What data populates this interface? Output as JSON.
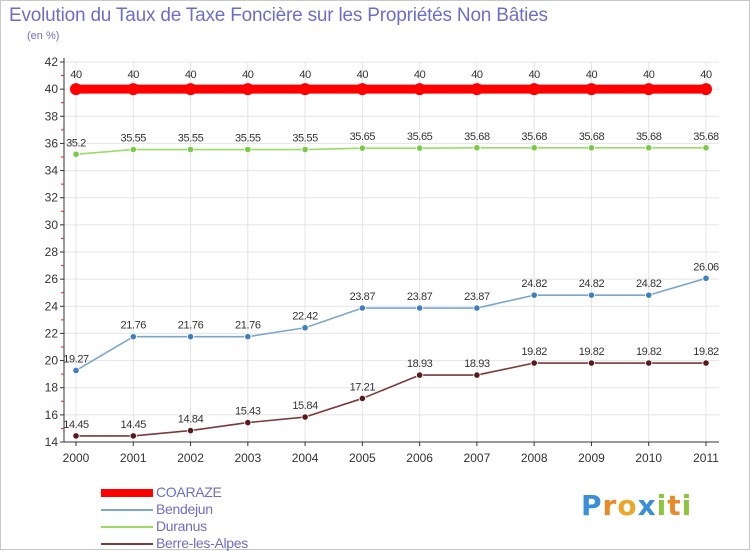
{
  "header": {
    "title": "Evolution du Taux de Taxe Foncière sur les Propriétés Non Bâties",
    "unit": "(en %)"
  },
  "logo": {
    "text": "Proxiti",
    "letters": [
      {
        "ch": "P",
        "color": "#3a8fd8"
      },
      {
        "ch": "r",
        "color": "#e88a2a"
      },
      {
        "ch": "o",
        "color": "#e8a82a"
      },
      {
        "ch": "x",
        "color": "#3a8fd8"
      },
      {
        "ch": "i",
        "color": "#8cc63f"
      },
      {
        "ch": "t",
        "color": "#e88a2a"
      },
      {
        "ch": "i",
        "color": "#8cc63f"
      }
    ]
  },
  "chart_data": {
    "type": "line",
    "title": "Evolution du Taux de Taxe Foncière sur les Propriétés Non Bâties",
    "ylabel": "(en %)",
    "xlabel": "",
    "categories": [
      "2000",
      "2001",
      "2002",
      "2003",
      "2004",
      "2005",
      "2006",
      "2007",
      "2008",
      "2009",
      "2010",
      "2011"
    ],
    "ylim": [
      14,
      42
    ],
    "yticks": [
      14,
      16,
      18,
      20,
      22,
      24,
      26,
      28,
      30,
      32,
      34,
      36,
      38,
      40,
      42
    ],
    "grid": true,
    "legend_position": "bottom-left",
    "series": [
      {
        "name": "COARAZE",
        "color": "#ff0000",
        "values": [
          40,
          40,
          40,
          40,
          40,
          40,
          40,
          40,
          40,
          40,
          40,
          40
        ],
        "labels": [
          "40",
          "40",
          "40",
          "40",
          "40",
          "40",
          "40",
          "40",
          "40",
          "40",
          "40",
          "40"
        ]
      },
      {
        "name": "Bendejun",
        "color": "#7ba7cf",
        "marker_color": "#3f7fbf",
        "values": [
          19.27,
          21.76,
          21.76,
          21.76,
          22.42,
          23.87,
          23.87,
          23.87,
          24.82,
          24.82,
          24.82,
          26.06
        ],
        "labels": [
          "19.27",
          "21.76",
          "21.76",
          "21.76",
          "22.42",
          "23.87",
          "23.87",
          "23.87",
          "24.82",
          "24.82",
          "24.82",
          "26.06"
        ]
      },
      {
        "name": "Duranus",
        "color": "#99dd66",
        "marker_color": "#77cc44",
        "values": [
          35.2,
          35.55,
          35.55,
          35.55,
          35.55,
          35.65,
          35.65,
          35.68,
          35.68,
          35.68,
          35.68,
          35.68
        ],
        "labels": [
          "35.2",
          "35.55",
          "35.55",
          "35.55",
          "35.55",
          "35.65",
          "35.65",
          "35.68",
          "35.68",
          "35.68",
          "35.68",
          "35.68"
        ]
      },
      {
        "name": "Berre-les-Alpes",
        "color": "#7a3a3a",
        "marker_color": "#5a1a1a",
        "values": [
          14.45,
          14.45,
          14.84,
          15.43,
          15.84,
          17.21,
          18.93,
          18.93,
          19.82,
          19.82,
          19.82,
          19.82
        ],
        "labels": [
          "14.45",
          "14.45",
          "14.84",
          "15.43",
          "15.84",
          "17.21",
          "18.93",
          "18.93",
          "19.82",
          "19.82",
          "19.82",
          "19.82"
        ]
      }
    ]
  }
}
